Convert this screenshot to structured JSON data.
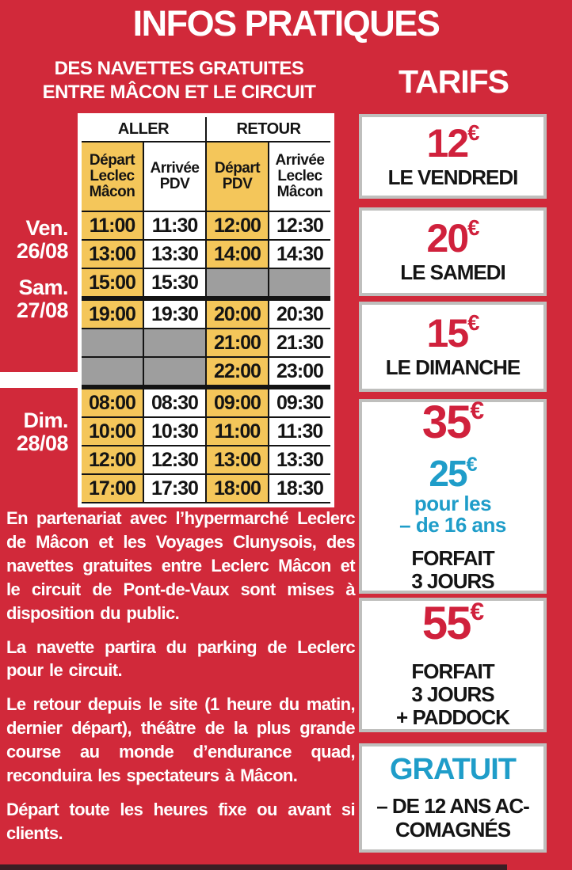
{
  "title": "INFOS PRATIQUES",
  "colors": {
    "background_red": "#d1293a",
    "price_red": "#d0213c",
    "accent_blue": "#1f9dc9",
    "cell_orange": "#f4c65a",
    "cell_gray": "#9e9e9e"
  },
  "shuttle": {
    "heading_line1": "DES NAVETTES GRATUITES",
    "heading_line2": "ENTRE MÂCON ET LE CIRCUIT",
    "table": {
      "direction_headers": [
        "ALLER",
        "RETOUR"
      ],
      "column_headers": [
        "Départ Leclec Mâcon",
        "Arrivée PDV",
        "Départ PDV",
        "Arrivée Leclec Mâcon"
      ],
      "day_groups": [
        {
          "label_line1": "Ven.",
          "label_line2": "26/08"
        },
        {
          "label_line1": "Sam.",
          "label_line2": "27/08"
        },
        {
          "label_line1": "Dim.",
          "label_line2": "28/08"
        }
      ],
      "rows": [
        [
          "11:00",
          "11:30",
          "12:00",
          "12:30"
        ],
        [
          "13:00",
          "13:30",
          "14:00",
          "14:30"
        ],
        [
          "15:00",
          "15:30",
          null,
          null
        ],
        [
          "19:00",
          "19:30",
          "20:00",
          "20:30"
        ],
        [
          null,
          null,
          "21:00",
          "21:30"
        ],
        [
          null,
          null,
          "22:00",
          "23:00"
        ],
        [
          "08:00",
          "08:30",
          "09:00",
          "09:30"
        ],
        [
          "10:00",
          "10:30",
          "11:00",
          "11:30"
        ],
        [
          "12:00",
          "12:30",
          "13:00",
          "13:30"
        ],
        [
          "17:00",
          "17:30",
          "18:00",
          "18:30"
        ]
      ],
      "group_break_after": [
        2,
        5
      ]
    },
    "paragraphs": [
      "En partenariat avec l’hypermarché Leclerc de Mâcon et les Voyages Clunysois, des navettes gratuites entre Leclerc Mâcon et le circuit de Pont-de-Vaux sont mises à disposition du public.",
      "La navette partira du parking de Leclerc pour le circuit.",
      "Le retour depuis le site (1 heure du matin, dernier départ), théâtre de la plus grande course au monde d’endurance quad, reconduira les spectateurs à Mâcon.",
      "Départ toute les heures fixe ou avant si clients."
    ]
  },
  "tarifs": {
    "heading": "TARIFS",
    "cards": [
      {
        "id": "vendredi",
        "rows": [
          {
            "text": "12",
            "sup": "€",
            "style": "price-red"
          },
          {
            "text": "LE VENDREDI",
            "style": "label-black"
          }
        ]
      },
      {
        "id": "samedi",
        "rows": [
          {
            "text": "20",
            "sup": "€",
            "style": "price-red"
          },
          {
            "text": "LE SAMEDI",
            "style": "label-black"
          }
        ]
      },
      {
        "id": "dimanche",
        "rows": [
          {
            "text": "15",
            "sup": "€",
            "style": "price-red"
          },
          {
            "text": "LE DIMANCHE",
            "style": "label-black"
          }
        ]
      },
      {
        "id": "forfait-3-jours",
        "rows": [
          {
            "text": "35",
            "sup": "€",
            "style": "price-red-big"
          },
          {
            "text": "25",
            "sup": "€",
            "style": "price-blue"
          },
          {
            "text": "pour les",
            "style": "label-blue"
          },
          {
            "text": "– de 16 ans",
            "style": "label-blue"
          },
          {
            "text": "FORFAIT",
            "style": "label-black",
            "gap_before": true
          },
          {
            "text": "3 JOURS",
            "style": "label-black"
          }
        ]
      },
      {
        "id": "forfait-3-jours-paddock",
        "rows": [
          {
            "text": "55",
            "sup": "€",
            "style": "price-red-big"
          },
          {
            "text": "FORFAIT",
            "style": "label-black",
            "gap_before": true
          },
          {
            "text": "3 JOURS",
            "style": "label-black"
          },
          {
            "text": "+ PADDOCK",
            "style": "label-black"
          }
        ]
      },
      {
        "id": "gratuit",
        "rows": [
          {
            "text": "GRATUIT",
            "style": "title-blue"
          },
          {
            "text": "– DE 12 ANS AC-",
            "style": "label-black",
            "gap_before": true
          },
          {
            "text": "COMAGNÉS",
            "style": "label-black"
          }
        ]
      }
    ]
  }
}
